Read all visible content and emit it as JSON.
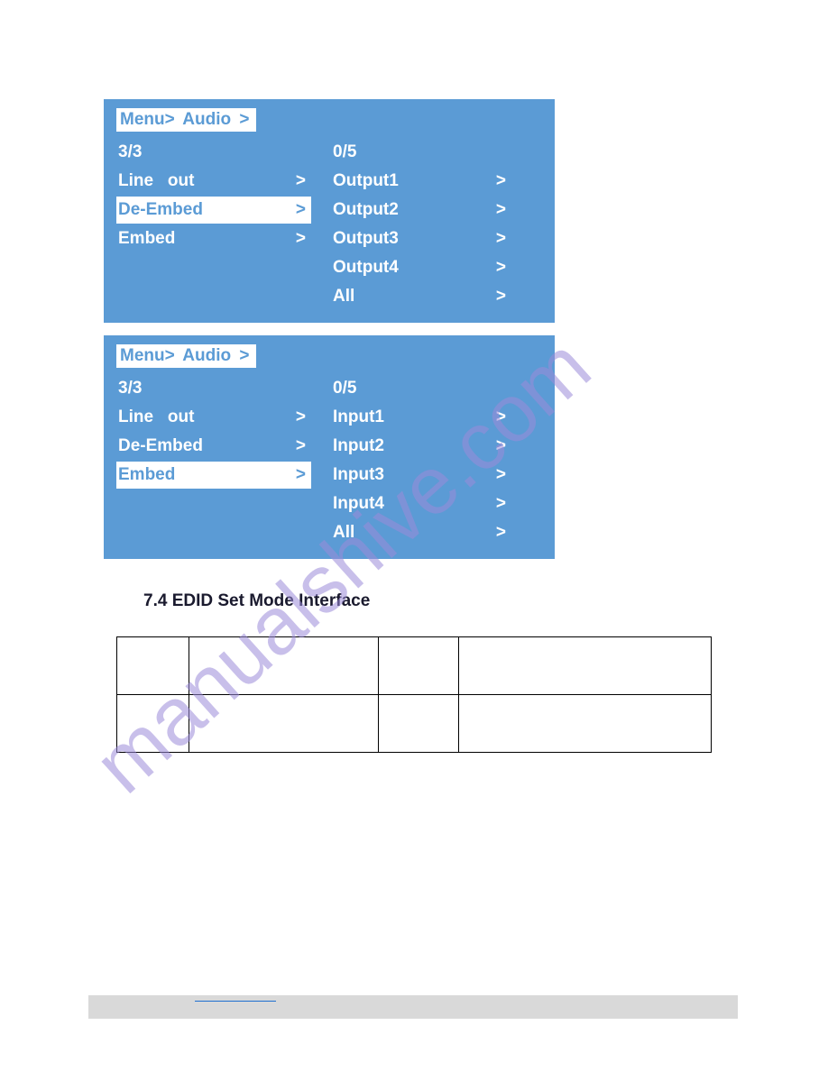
{
  "panels": [
    {
      "breadcrumb": "Menu>  Audio >",
      "left": {
        "count": "3/3",
        "items": [
          {
            "label": "Line   out",
            "selected": false
          },
          {
            "label": "De-Embed",
            "selected": true
          },
          {
            "label": "Embed",
            "selected": false
          }
        ]
      },
      "right": {
        "count": "0/5",
        "items": [
          {
            "label": "Output1"
          },
          {
            "label": "Output2"
          },
          {
            "label": "Output3"
          },
          {
            "label": "Output4"
          },
          {
            "label": "All"
          }
        ]
      }
    },
    {
      "breadcrumb": "Menu>  Audio >",
      "left": {
        "count": "3/3",
        "items": [
          {
            "label": "Line   out",
            "selected": false
          },
          {
            "label": "De-Embed",
            "selected": false
          },
          {
            "label": "Embed",
            "selected": true
          }
        ]
      },
      "right": {
        "count": "0/5",
        "items": [
          {
            "label": "Input1"
          },
          {
            "label": "Input2"
          },
          {
            "label": "Input3"
          },
          {
            "label": "Input4"
          },
          {
            "label": "All"
          }
        ]
      }
    }
  ],
  "section_title": "7.4 EDID Set Mode Interface",
  "table": {
    "rows": 2,
    "cols": 4
  },
  "arrow": ">",
  "colors": {
    "panel_bg": "#5b9bd5",
    "panel_text": "#ffffff",
    "selected_bg": "#ffffff",
    "selected_text": "#5b9bd5",
    "title": "#1a1a2e",
    "footer_bg": "#d9d9d9",
    "link": "#1f6fd0",
    "watermark": "#9a8bd9"
  },
  "watermark_text": "manualshive.com"
}
